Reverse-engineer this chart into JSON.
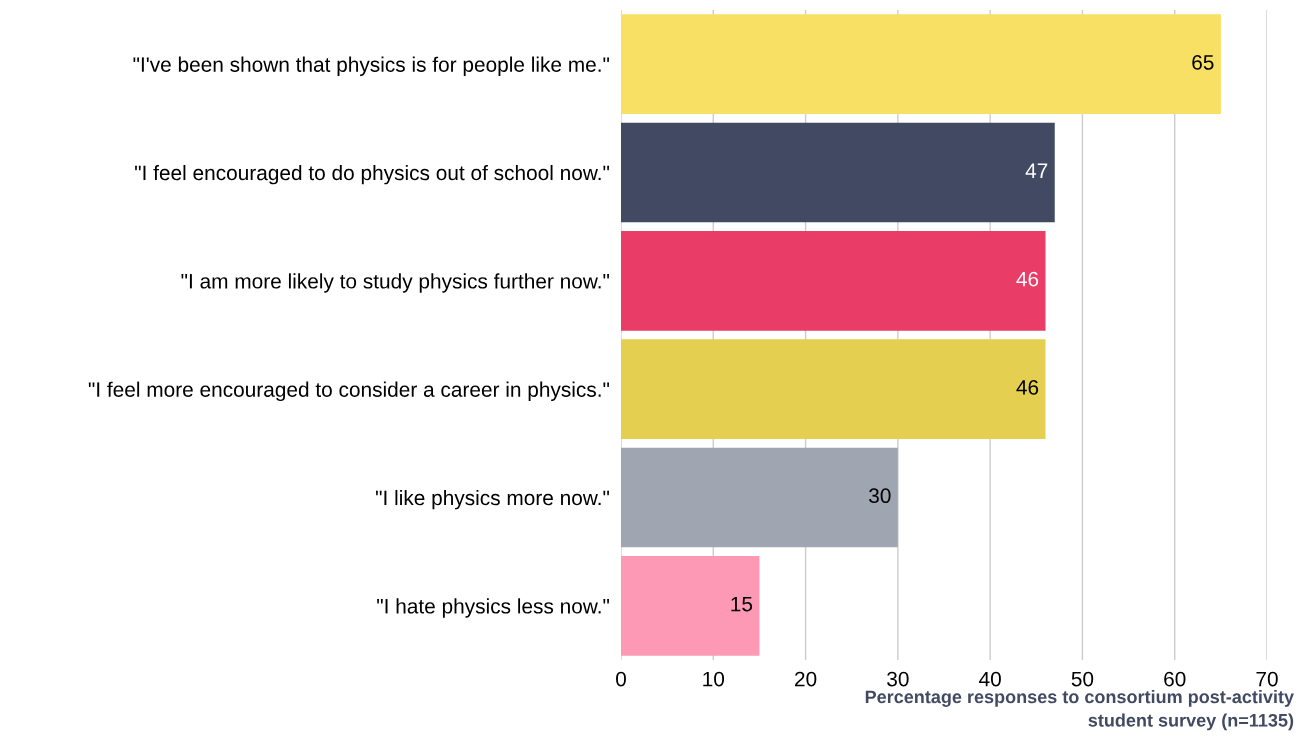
{
  "chart_data": {
    "type": "bar",
    "orientation": "horizontal",
    "categories": [
      "\"I've been shown that physics is for people like me.\"",
      "\"I feel encouraged to do physics out of school now.\"",
      "\"I am more likely to study physics further now.\"",
      "\"I feel more encouraged to consider a career in physics.\"",
      "\"I like physics more now.\"",
      "\"I hate physics less now.\""
    ],
    "values": [
      65,
      47,
      46,
      46,
      30,
      15
    ],
    "colors": [
      "#f7e063",
      "#414a62",
      "#e93c66",
      "#e5cf50",
      "#a0a6b1",
      "#fd99b4"
    ],
    "xlim": [
      0,
      70
    ],
    "xticks": [
      0,
      10,
      20,
      30,
      40,
      50,
      60,
      70
    ],
    "xlabel": "Percentage responses to consortium post-activity\nstudent survey (n=1135)",
    "grid": "x",
    "data_labels": true
  }
}
